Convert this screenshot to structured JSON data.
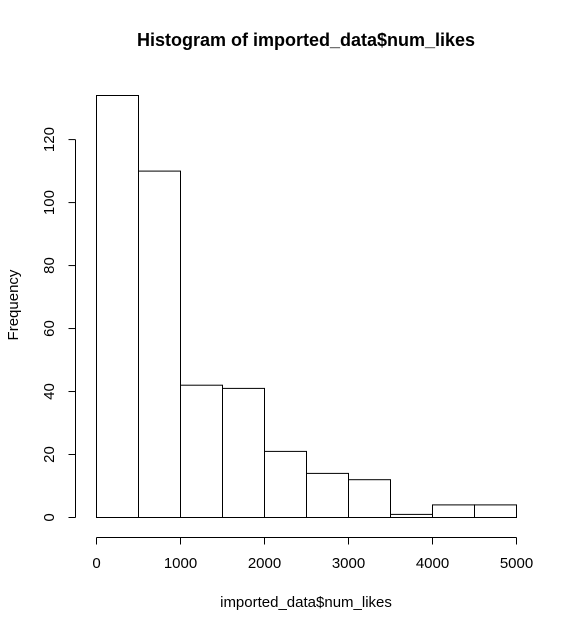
{
  "chart_data": {
    "type": "bar",
    "subtype": "histogram",
    "title": "Histogram of imported_data$num_likes",
    "xlabel": "imported_data$num_likes",
    "ylabel": "Frequency",
    "bins": [
      {
        "start": 0,
        "end": 500,
        "count": 134
      },
      {
        "start": 500,
        "end": 1000,
        "count": 110
      },
      {
        "start": 1000,
        "end": 1500,
        "count": 42
      },
      {
        "start": 1500,
        "end": 2000,
        "count": 41
      },
      {
        "start": 2000,
        "end": 2500,
        "count": 21
      },
      {
        "start": 2500,
        "end": 3000,
        "count": 14
      },
      {
        "start": 3000,
        "end": 3500,
        "count": 12
      },
      {
        "start": 3500,
        "end": 4000,
        "count": 1
      },
      {
        "start": 4000,
        "end": 4500,
        "count": 4
      },
      {
        "start": 4500,
        "end": 5000,
        "count": 4
      }
    ],
    "xlim": [
      0,
      5000
    ],
    "ylim": [
      0,
      134
    ],
    "x_ticks": [
      "0",
      "1000",
      "2000",
      "3000",
      "4000",
      "5000"
    ],
    "y_ticks": [
      "0",
      "20",
      "40",
      "60",
      "80",
      "100",
      "120"
    ],
    "bar_fill": "#ffffff",
    "bar_stroke": "#000000",
    "grid": false,
    "legend": "none"
  }
}
